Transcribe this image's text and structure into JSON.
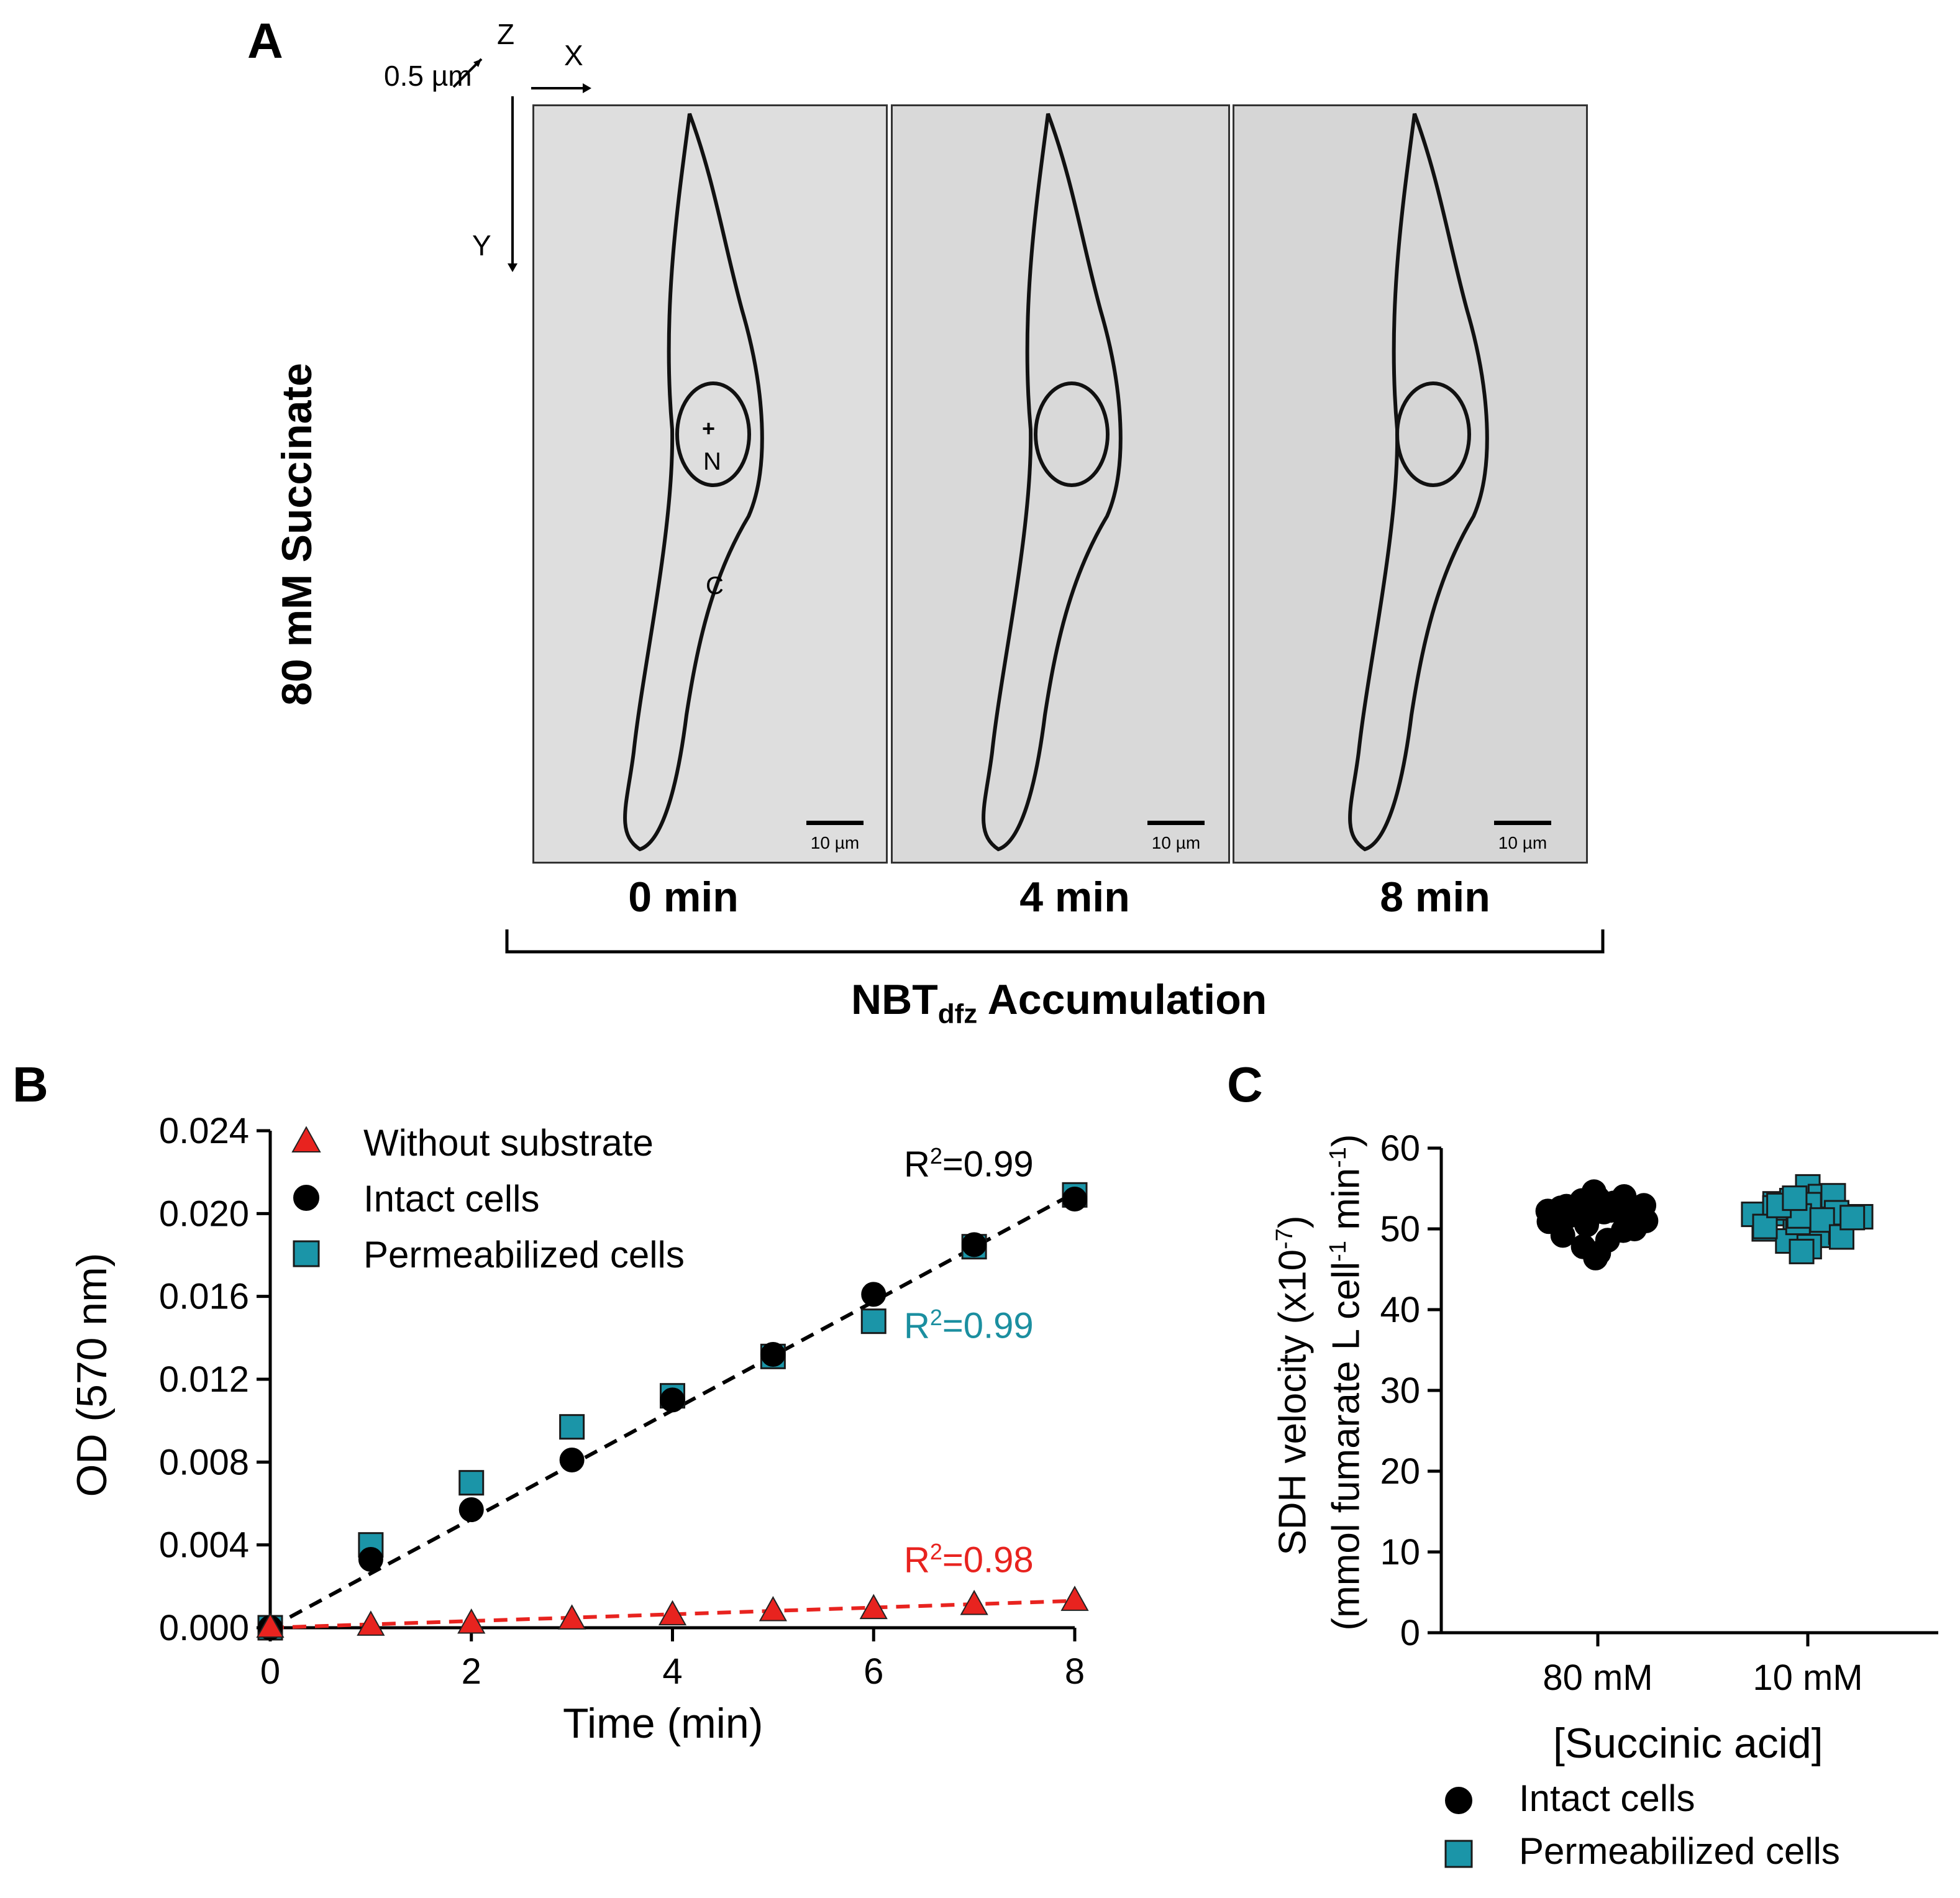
{
  "panel_a": {
    "letter": "A",
    "side_label": "80 mM Succinate",
    "axis_z": "Z",
    "axis_x": "X",
    "axis_y": "Y",
    "z_scale": "0.5 µm",
    "nucleus_mark": "+",
    "nucleus_label": "N",
    "cytoplasm_label": "C",
    "scale_bar": "10 µm",
    "frames": [
      "0 min",
      "4 min",
      "8 min"
    ],
    "accumulation_main": "NBT",
    "accumulation_sub": "dfz",
    "accumulation_rest": "Accumulation"
  },
  "panel_b": {
    "letter": "B",
    "legend": [
      "Without substrate",
      "Intact cells",
      "Permeabilized cells"
    ],
    "r2_intact_prefix": "R",
    "r2_intact_sup": "2",
    "r2_intact_value": "=0.99",
    "r2_perm_prefix": "R",
    "r2_perm_sup": "2",
    "r2_perm_value": "=0.99",
    "r2_without_prefix": "R",
    "r2_without_sup": "2",
    "r2_without_value": "=0.98"
  },
  "panel_c": {
    "letter": "C"
  },
  "colors": {
    "red": "#e8231f",
    "teal": "#1b95a8",
    "black": "#000000",
    "r2_red": "#e8231f",
    "r2_teal": "#1b8fa0"
  },
  "chart_data": [
    {
      "type": "scatter",
      "xlabel": "Time (min)",
      "ylabel": "OD (570 nm)",
      "xlim": [
        0,
        8
      ],
      "ylim": [
        0,
        0.024
      ],
      "xticks": [
        "0",
        "2",
        "4",
        "6",
        "8"
      ],
      "yticks": [
        "0.000",
        "0.004",
        "0.008",
        "0.012",
        "0.016",
        "0.020",
        "0.024"
      ],
      "legend_position": "top-left",
      "series": [
        {
          "name": "Without substrate",
          "marker": "triangle",
          "color": "#e8231f",
          "x": [
            0,
            1,
            2,
            3,
            4,
            5,
            6,
            7,
            8
          ],
          "y": [
            0.0,
            0.0001,
            0.0002,
            0.0004,
            0.0006,
            0.0008,
            0.0009,
            0.0011,
            0.0013
          ]
        },
        {
          "name": "Intact cells",
          "marker": "circle",
          "color": "#000000",
          "x": [
            0,
            1,
            2,
            3,
            4,
            5,
            6,
            7,
            8
          ],
          "y": [
            0.0,
            0.0033,
            0.0057,
            0.0081,
            0.011,
            0.0132,
            0.0161,
            0.0185,
            0.0207
          ]
        },
        {
          "name": "Permeabilized cells",
          "marker": "square",
          "color": "#1b95a8",
          "x": [
            0,
            1,
            2,
            3,
            4,
            5,
            6,
            7,
            8
          ],
          "y": [
            0.0,
            0.004,
            0.007,
            0.0097,
            0.0112,
            0.0131,
            0.0148,
            0.0184,
            0.0209
          ]
        }
      ],
      "fits": [
        {
          "series": "Intact cells",
          "color": "#000000",
          "x": [
            0,
            8
          ],
          "y": [
            0.0,
            0.021
          ]
        },
        {
          "series": "Without substrate",
          "color": "#e8231f",
          "x": [
            0,
            8
          ],
          "y": [
            0.0,
            0.0013
          ]
        }
      ]
    },
    {
      "type": "scatter",
      "xlabel": "[Succinic acid]",
      "ylabel_line1": "SDH velocity (x10",
      "ylabel_line1_sup": "-7",
      "ylabel_line1_end": ")",
      "ylabel_line2_a": "(mmol fumarate L cell",
      "ylabel_line2_sup1": "-1",
      "ylabel_line2_b": " min",
      "ylabel_line2_sup2": "-1",
      "ylabel_line2_end": ")",
      "ylim": [
        0,
        60
      ],
      "yticks": [
        "0",
        "10",
        "20",
        "30",
        "40",
        "50",
        "60"
      ],
      "categories": [
        "80 mM",
        "10 mM"
      ],
      "legend_position": "bottom",
      "legend": [
        "Intact cells",
        "Permeabilized cells"
      ],
      "series": [
        {
          "name": "Intact cells",
          "marker": "circle",
          "color": "#000000",
          "category": "80 mM",
          "values": [
            53.8,
            53.2,
            52.6,
            52.1,
            51.6,
            51.0,
            50.5,
            49.8,
            49.2,
            48.6,
            47.8,
            47.0,
            46.4,
            50.0,
            51.1,
            51.8,
            52.2,
            52.5,
            52.8,
            53.1,
            53.5,
            54.0,
            54.6,
            51.4,
            50.9,
            52.3,
            51.7,
            52.9,
            53.3,
            50.3
          ]
        },
        {
          "name": "Permeabilized cells",
          "marker": "square",
          "color": "#1b95a8",
          "category": "10 mM",
          "values": [
            55.2,
            54.0,
            53.1,
            52.4,
            51.9,
            51.5,
            51.0,
            50.5,
            50.0,
            49.2,
            48.5,
            47.8,
            47.2,
            49.6,
            50.8,
            51.3,
            51.8,
            52.2,
            52.6,
            53.0,
            53.5,
            54.1,
            51.6,
            52.0,
            50.3,
            51.1,
            52.9,
            49.0,
            53.8,
            51.4
          ]
        }
      ]
    }
  ]
}
